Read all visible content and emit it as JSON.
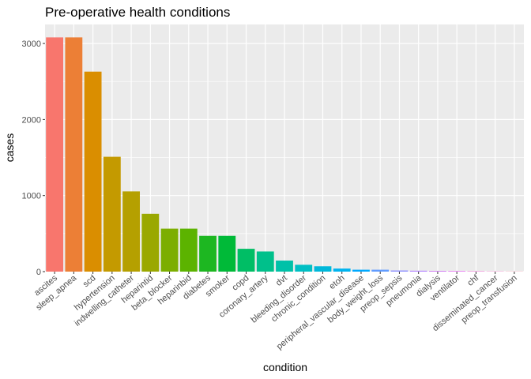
{
  "chart_data": {
    "type": "bar",
    "title": "Pre-operative health conditions",
    "xlabel": "condition",
    "ylabel": "cases",
    "ylim": [
      0,
      3250
    ],
    "yticks": [
      0,
      1000,
      2000,
      3000
    ],
    "grid": true,
    "legend": "none",
    "categories": [
      "ascites",
      "sleep_apnea",
      "scd",
      "hypertension",
      "indwelling_catheter",
      "heparintid",
      "beta_blocker",
      "heparinbid",
      "diabetes",
      "smoker",
      "copd",
      "coronary_artery",
      "dvt",
      "bleeding_disorder",
      "chronic_condition",
      "etoh",
      "peripheral_vascular_disease",
      "body_weight_loss",
      "preop_sepsis",
      "pneumonia",
      "dialysis",
      "ventilator",
      "chf",
      "disseminated_cancer",
      "preop_transfusion"
    ],
    "values": [
      3080,
      3080,
      2630,
      1510,
      1055,
      760,
      565,
      565,
      470,
      470,
      300,
      265,
      145,
      90,
      70,
      40,
      25,
      25,
      15,
      12,
      10,
      8,
      5,
      3,
      2
    ],
    "colors": [
      "#F8766D",
      "#EC7F36",
      "#DA8E00",
      "#C49A00",
      "#B5A000",
      "#9AA800",
      "#7CAE00",
      "#5CB300",
      "#1DB721",
      "#00BA38",
      "#00BE65",
      "#00C08B",
      "#00C1A8",
      "#00BFC4",
      "#00B8DA",
      "#00B4EF",
      "#00A9FF",
      "#619CFF",
      "#8F91FF",
      "#B383FF",
      "#D07BF1",
      "#E76BF3",
      "#F262D4",
      "#FC61C0",
      "#FF6C91"
    ],
    "panel_background": "#EBEBEB",
    "grid_color": "#FFFFFF"
  }
}
